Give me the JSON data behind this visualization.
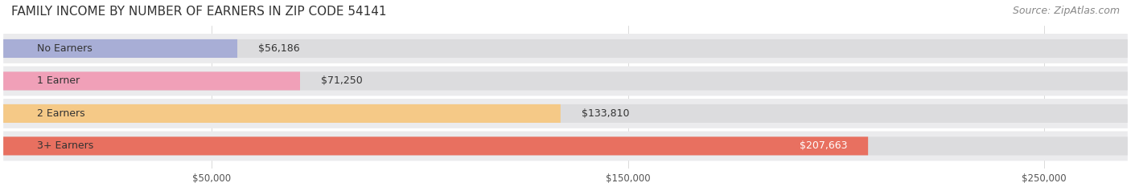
{
  "title": "FAMILY INCOME BY NUMBER OF EARNERS IN ZIP CODE 54141",
  "source": "Source: ZipAtlas.com",
  "categories": [
    "No Earners",
    "1 Earner",
    "2 Earners",
    "3+ Earners"
  ],
  "values": [
    56186,
    71250,
    133810,
    207663
  ],
  "labels": [
    "$56,186",
    "$71,250",
    "$133,810",
    "$207,663"
  ],
  "bar_colors": [
    "#a8aed6",
    "#f0a0b8",
    "#f5c987",
    "#e87060"
  ],
  "bar_bg_color": "#f0f0f0",
  "row_bg_colors": [
    "#f7f7f9",
    "#f7f7f9",
    "#f7f7f9",
    "#f7f7f9"
  ],
  "xmax": 270000,
  "xticks": [
    50000,
    150000,
    250000
  ],
  "xtick_labels": [
    "$50,000",
    "$150,000",
    "$250,000"
  ],
  "title_fontsize": 11,
  "source_fontsize": 9,
  "label_fontsize": 9,
  "cat_fontsize": 9,
  "background_color": "#ffffff"
}
